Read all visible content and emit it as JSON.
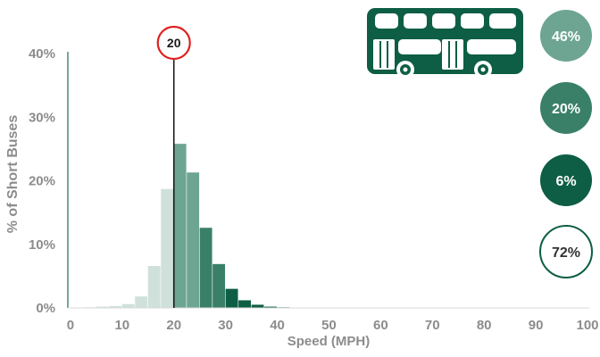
{
  "chart_data": {
    "type": "bar",
    "title": "",
    "xlabel": "Speed (MPH)",
    "ylabel": "% of Short Buses",
    "xlim": [
      -0.5,
      100
    ],
    "ylim": [
      0,
      40
    ],
    "x_ticks": [
      {
        "value": 0,
        "label": "0"
      },
      {
        "value": 10,
        "label": "10"
      },
      {
        "value": 20,
        "label": "20"
      },
      {
        "value": 30,
        "label": "30"
      },
      {
        "value": 40,
        "label": "40"
      },
      {
        "value": 50,
        "label": "50"
      },
      {
        "value": 60,
        "label": "60"
      },
      {
        "value": 70,
        "label": "70"
      },
      {
        "value": 80,
        "label": "80"
      },
      {
        "value": 90,
        "label": "90"
      },
      {
        "value": 100,
        "label": "100"
      }
    ],
    "y_ticks": [
      {
        "value": 0,
        "label": "0%"
      },
      {
        "value": 10,
        "label": "10%"
      },
      {
        "value": 20,
        "label": "20%"
      },
      {
        "value": 30,
        "label": "30%"
      },
      {
        "value": 40,
        "label": "40%"
      }
    ],
    "bin_width": 2.5,
    "bins": [
      {
        "start": 0,
        "value": 0.05,
        "group": 0
      },
      {
        "start": 2.5,
        "value": 0.1,
        "group": 0
      },
      {
        "start": 5,
        "value": 0.2,
        "group": 0
      },
      {
        "start": 7.5,
        "value": 0.3,
        "group": 0
      },
      {
        "start": 10,
        "value": 0.6,
        "group": 0
      },
      {
        "start": 12.5,
        "value": 1.8,
        "group": 0
      },
      {
        "start": 15,
        "value": 6.6,
        "group": 0
      },
      {
        "start": 17.5,
        "value": 18.7,
        "group": 0
      },
      {
        "start": 20,
        "value": 25.8,
        "group": 1
      },
      {
        "start": 22.5,
        "value": 21.3,
        "group": 1
      },
      {
        "start": 25,
        "value": 12.6,
        "group": 2
      },
      {
        "start": 27.5,
        "value": 6.9,
        "group": 2
      },
      {
        "start": 30,
        "value": 3.0,
        "group": 3
      },
      {
        "start": 32.5,
        "value": 1.2,
        "group": 3
      },
      {
        "start": 35,
        "value": 0.5,
        "group": 3
      },
      {
        "start": 37.5,
        "value": 0.2,
        "group": 3
      },
      {
        "start": 40,
        "value": 0.1,
        "group": 3
      }
    ],
    "group_colors": [
      "#cfe1da",
      "#6da592",
      "#3a8069",
      "#0d5e44"
    ],
    "reference_line": {
      "x": 20,
      "label": "20",
      "ring_color": "#e02020"
    },
    "summary_badges": [
      {
        "label": "46%",
        "fill": "#6da592",
        "text_color": "#ffffff",
        "outline": false
      },
      {
        "label": "20%",
        "fill": "#3a8069",
        "text_color": "#ffffff",
        "outline": false
      },
      {
        "label": "6%",
        "fill": "#0d5e44",
        "text_color": "#ffffff",
        "outline": false
      },
      {
        "label": "72%",
        "fill": "#ffffff",
        "text_color": "#333333",
        "outline": true
      }
    ],
    "grid": false,
    "legend": "none"
  },
  "colors": {
    "axis": "#2f7a5c",
    "tick_text": "#8c8c8c",
    "reference_line": "#1a1a1a",
    "bus": "#0d5e44"
  },
  "icons": {
    "bus": "double-decker-bus-icon"
  }
}
